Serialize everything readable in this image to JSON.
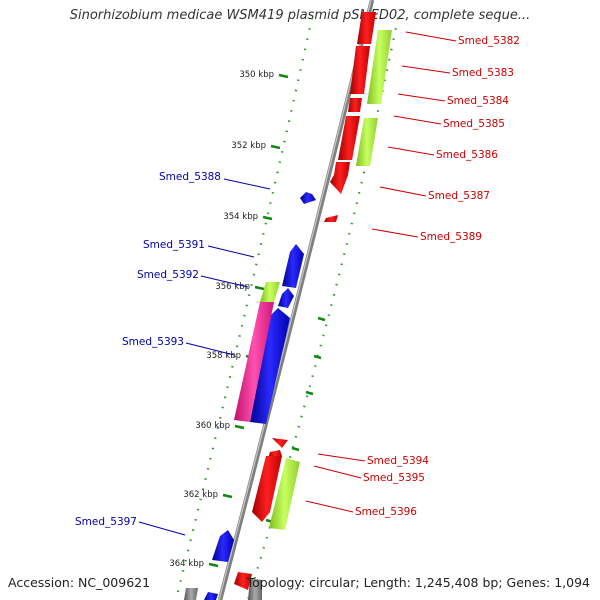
{
  "title": "Sinorhizobium medicae WSM419 plasmid pSMED02, complete seque...",
  "footer": {
    "accession": "Accession: NC_009621",
    "summary": "Topology: circular; Length: 1,245,408 bp; Genes: 1,094"
  },
  "colors": {
    "forward_gene": "#ee1111",
    "reverse_gene": "#1010dd",
    "cds_reverse": "#ff2a9a",
    "cds_forward": "#a6e83a",
    "backbone": "#8a8a8a",
    "tick": "#118811",
    "label_forward": "#cc0000",
    "label_reverse": "#0000aa"
  },
  "ruler": [
    {
      "label": "350 kbp"
    },
    {
      "label": "352 kbp"
    },
    {
      "label": "354 kbp"
    },
    {
      "label": "356 kbp"
    },
    {
      "label": "358 kbp"
    },
    {
      "label": "360 kbp"
    },
    {
      "label": "362 kbp"
    },
    {
      "label": "364 kbp"
    }
  ],
  "gene_labels_forward": [
    "Smed_5382",
    "Smed_5383",
    "Smed_5384",
    "Smed_5385",
    "Smed_5386",
    "Smed_5387",
    "Smed_5389",
    "Smed_5394",
    "Smed_5395",
    "Smed_5396"
  ],
  "gene_labels_reverse": [
    "Smed_5388",
    "Smed_5391",
    "Smed_5392",
    "Smed_5393",
    "Smed_5397"
  ]
}
